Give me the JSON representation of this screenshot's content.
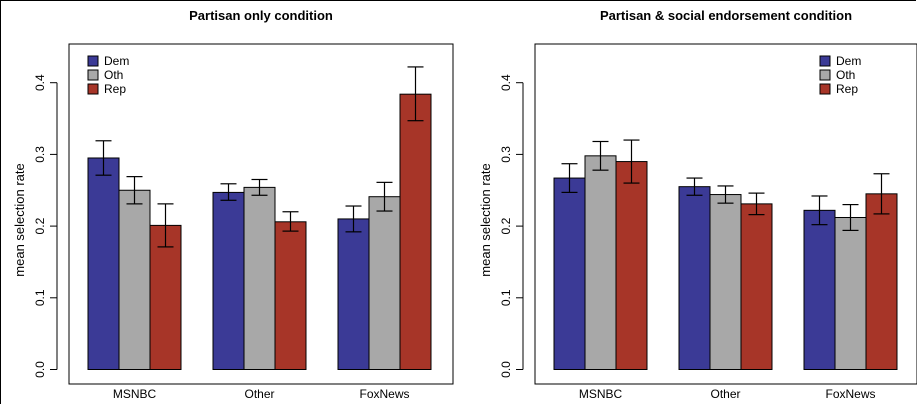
{
  "chart_data": [
    {
      "type": "bar",
      "title": "Partisan only condition",
      "xlabel": "",
      "ylabel": "mean selection rate",
      "ylim": [
        0,
        0.45
      ],
      "yticks": [
        "0.0",
        "0.1",
        "0.2",
        "0.3",
        "0.4"
      ],
      "categories": [
        "MSNBC",
        "Other",
        "FoxNews"
      ],
      "legend_position": "top-left",
      "series": [
        {
          "name": "Dem",
          "color": "#3b3a96",
          "values": [
            0.295,
            0.247,
            0.21
          ],
          "err_low": [
            0.271,
            0.236,
            0.192
          ],
          "err_high": [
            0.319,
            0.259,
            0.228
          ]
        },
        {
          "name": "Oth",
          "color": "#a8a8a8",
          "values": [
            0.25,
            0.254,
            0.241
          ],
          "err_low": [
            0.231,
            0.243,
            0.221
          ],
          "err_high": [
            0.269,
            0.265,
            0.261
          ]
        },
        {
          "name": "Rep",
          "color": "#a73528",
          "values": [
            0.201,
            0.206,
            0.384
          ],
          "err_low": [
            0.171,
            0.193,
            0.347
          ],
          "err_high": [
            0.231,
            0.22,
            0.422
          ]
        }
      ]
    },
    {
      "type": "bar",
      "title": "Partisan & social endorsement condition",
      "xlabel": "",
      "ylabel": "mean selection rate",
      "ylim": [
        0,
        0.45
      ],
      "yticks": [
        "0.0",
        "0.1",
        "0.2",
        "0.3",
        "0.4"
      ],
      "categories": [
        "MSNBC",
        "Other",
        "FoxNews"
      ],
      "legend_position": "top-right",
      "series": [
        {
          "name": "Dem",
          "color": "#3b3a96",
          "values": [
            0.267,
            0.255,
            0.222
          ],
          "err_low": [
            0.247,
            0.243,
            0.202
          ],
          "err_high": [
            0.287,
            0.267,
            0.242
          ]
        },
        {
          "name": "Oth",
          "color": "#a8a8a8",
          "values": [
            0.298,
            0.244,
            0.212
          ],
          "err_low": [
            0.278,
            0.232,
            0.194
          ],
          "err_high": [
            0.318,
            0.256,
            0.23
          ]
        },
        {
          "name": "Rep",
          "color": "#a73528",
          "values": [
            0.29,
            0.231,
            0.245
          ],
          "err_low": [
            0.26,
            0.216,
            0.217
          ],
          "err_high": [
            0.32,
            0.246,
            0.273
          ]
        }
      ]
    }
  ]
}
